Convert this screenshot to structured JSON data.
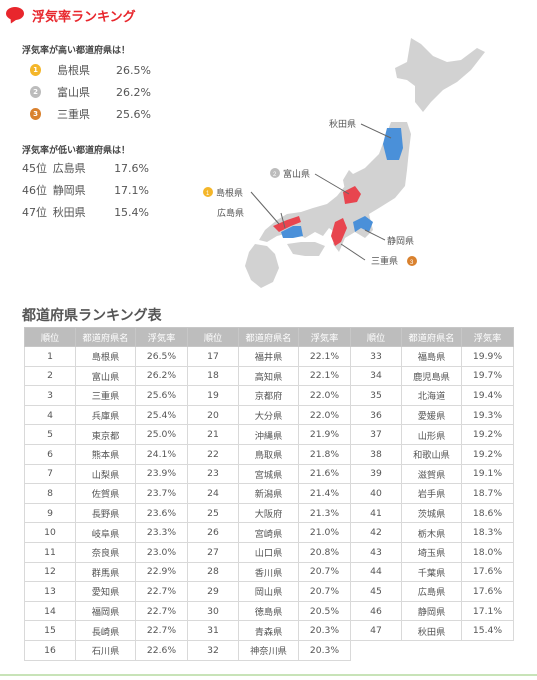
{
  "header": {
    "title": "浮気率ランキング"
  },
  "high": {
    "title": "浮気率が高い都道府県は！",
    "items": [
      {
        "medal": "gold",
        "rank": "1",
        "pref": "島根県",
        "rate": "26.5%"
      },
      {
        "medal": "silver",
        "rank": "2",
        "pref": "富山県",
        "rate": "26.2%"
      },
      {
        "medal": "bronze",
        "rank": "3",
        "pref": "三重県",
        "rate": "25.6%"
      }
    ]
  },
  "low": {
    "title": "浮気率が低い都道府県は！",
    "items": [
      {
        "pos": "45位",
        "pref": "広島県",
        "rate": "17.6%"
      },
      {
        "pos": "46位",
        "pref": "静岡県",
        "rate": "17.1%"
      },
      {
        "pos": "47位",
        "pref": "秋田県",
        "rate": "15.4%"
      }
    ]
  },
  "map_labels": {
    "akita": "秋田県",
    "toyama": "富山県",
    "shimane": "島根県",
    "hiroshima": "広島県",
    "shizuoka": "静岡県",
    "mie": "三重県",
    "shimane_medal": "1",
    "toyama_medal": "2",
    "mie_medal": "3"
  },
  "colors": {
    "high": "#e8454f",
    "low": "#4a90d9",
    "land": "#d2d2d2",
    "brand": "#e8262c"
  },
  "table": {
    "title": "都道府県ランキング表",
    "headers": [
      "順位",
      "都道府県名",
      "浮気率",
      "順位",
      "都道府県名",
      "浮気率",
      "順位",
      "都道府県名",
      "浮気率"
    ],
    "rows": [
      [
        "1",
        "島根県",
        "26.5%",
        "17",
        "福井県",
        "22.1%",
        "33",
        "福島県",
        "19.9%"
      ],
      [
        "2",
        "富山県",
        "26.2%",
        "18",
        "高知県",
        "22.1%",
        "34",
        "鹿児島県",
        "19.7%"
      ],
      [
        "3",
        "三重県",
        "25.6%",
        "19",
        "京都府",
        "22.0%",
        "35",
        "北海道",
        "19.4%"
      ],
      [
        "4",
        "兵庫県",
        "25.4%",
        "20",
        "大分県",
        "22.0%",
        "36",
        "愛媛県",
        "19.3%"
      ],
      [
        "5",
        "東京都",
        "25.0%",
        "21",
        "沖縄県",
        "21.9%",
        "37",
        "山形県",
        "19.2%"
      ],
      [
        "6",
        "熊本県",
        "24.1%",
        "22",
        "鳥取県",
        "21.8%",
        "38",
        "和歌山県",
        "19.2%"
      ],
      [
        "7",
        "山梨県",
        "23.9%",
        "23",
        "宮城県",
        "21.6%",
        "39",
        "滋賀県",
        "19.1%"
      ],
      [
        "8",
        "佐賀県",
        "23.7%",
        "24",
        "新潟県",
        "21.4%",
        "40",
        "岩手県",
        "18.7%"
      ],
      [
        "9",
        "長野県",
        "23.6%",
        "25",
        "大阪府",
        "21.3%",
        "41",
        "茨城県",
        "18.6%"
      ],
      [
        "10",
        "岐阜県",
        "23.3%",
        "26",
        "宮崎県",
        "21.0%",
        "42",
        "栃木県",
        "18.3%"
      ],
      [
        "11",
        "奈良県",
        "23.0%",
        "27",
        "山口県",
        "20.8%",
        "43",
        "埼玉県",
        "18.0%"
      ],
      [
        "12",
        "群馬県",
        "22.9%",
        "28",
        "香川県",
        "20.7%",
        "44",
        "千葉県",
        "17.6%"
      ],
      [
        "13",
        "愛知県",
        "22.7%",
        "29",
        "岡山県",
        "20.7%",
        "45",
        "広島県",
        "17.6%"
      ],
      [
        "14",
        "福岡県",
        "22.7%",
        "30",
        "徳島県",
        "20.5%",
        "46",
        "静岡県",
        "17.1%"
      ],
      [
        "15",
        "長崎県",
        "22.7%",
        "31",
        "青森県",
        "20.3%",
        "47",
        "秋田県",
        "15.4%"
      ],
      [
        "16",
        "石川県",
        "22.6%",
        "32",
        "神奈川県",
        "20.3%",
        "",
        "",
        ""
      ]
    ]
  }
}
